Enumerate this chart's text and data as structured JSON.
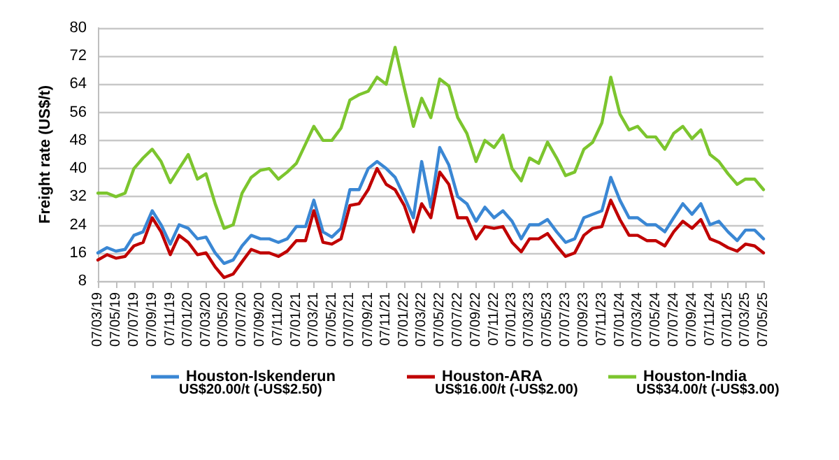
{
  "chart_data": {
    "type": "line",
    "ylabel": "Freight rate (US$/t)",
    "x": [
      "2019-03-07",
      "2019-04-07",
      "2019-05-07",
      "2019-06-07",
      "2019-07-07",
      "2019-08-07",
      "2019-09-07",
      "2019-10-07",
      "2019-11-07",
      "2019-12-07",
      "2020-01-07",
      "2020-02-07",
      "2020-03-07",
      "2020-04-07",
      "2020-05-07",
      "2020-06-07",
      "2020-07-07",
      "2020-08-07",
      "2020-09-07",
      "2020-10-07",
      "2020-11-07",
      "2020-12-07",
      "2021-01-07",
      "2021-02-07",
      "2021-03-07",
      "2021-04-07",
      "2021-05-07",
      "2021-06-07",
      "2021-07-07",
      "2021-08-07",
      "2021-09-07",
      "2021-10-07",
      "2021-11-07",
      "2021-12-07",
      "2022-01-07",
      "2022-02-07",
      "2022-03-07",
      "2022-04-07",
      "2022-05-07",
      "2022-06-07",
      "2022-07-07",
      "2022-08-07",
      "2022-09-07",
      "2022-10-07",
      "2022-11-07",
      "2022-12-07",
      "2023-01-07",
      "2023-02-07",
      "2023-03-07",
      "2023-04-07",
      "2023-05-07",
      "2023-06-07",
      "2023-07-07",
      "2023-08-07",
      "2023-09-07",
      "2023-10-07",
      "2023-11-07",
      "2023-12-07",
      "2024-01-07",
      "2024-02-07",
      "2024-03-07",
      "2024-04-07",
      "2024-05-07",
      "2024-06-07",
      "2024-07-07",
      "2024-08-07",
      "2024-09-07",
      "2024-10-07",
      "2024-11-07",
      "2024-12-07",
      "2025-01-07",
      "2025-02-07",
      "2025-03-07",
      "2025-04-07",
      "2025-05-07"
    ],
    "series": [
      {
        "name": "Houston-Iskenderun",
        "color": "#3a87d4",
        "values": [
          16,
          17.5,
          16.5,
          17,
          21,
          22,
          28,
          24,
          18.5,
          24,
          23,
          20,
          20.5,
          16,
          13,
          14,
          18,
          21,
          20,
          20,
          19,
          20,
          23.5,
          23.5,
          31,
          22,
          20.5,
          23,
          34,
          34,
          40,
          42,
          40,
          37.5,
          32,
          26,
          42,
          29,
          46,
          41,
          32,
          30,
          25,
          29,
          26,
          28,
          25,
          20,
          24,
          24,
          25.5,
          22,
          19,
          20,
          26,
          27,
          28,
          37.5,
          31,
          26,
          26,
          24,
          24,
          22,
          26,
          30,
          27,
          30,
          24,
          25,
          22,
          19.5,
          22.5,
          22.5,
          20
        ]
      },
      {
        "name": "Houston-ARA",
        "color": "#c00000",
        "values": [
          14,
          15.5,
          14.5,
          15,
          18,
          19,
          26,
          22,
          15.5,
          21,
          19,
          15.5,
          16,
          12,
          9,
          10,
          13.5,
          17,
          16,
          16,
          15,
          16.5,
          19.5,
          19.5,
          28,
          19,
          18.5,
          20,
          29.5,
          30,
          34,
          40,
          35.5,
          34,
          29.5,
          22,
          30,
          26,
          39,
          35.5,
          26,
          26,
          20,
          23.5,
          23,
          23.5,
          19,
          16.3,
          20,
          20,
          21.5,
          18,
          15,
          16,
          21,
          23,
          23.5,
          31,
          25.5,
          21,
          21,
          19.5,
          19.5,
          18,
          22,
          25,
          23,
          25.5,
          20,
          19,
          17.5,
          16.5,
          18.5,
          18,
          16
        ]
      },
      {
        "name": "Houston-India",
        "color": "#7cc52e",
        "values": [
          33,
          33,
          32,
          33,
          40,
          43,
          45.5,
          42,
          36,
          40,
          44,
          37,
          38.5,
          30,
          23,
          24,
          33,
          37.5,
          39.5,
          40,
          37,
          39,
          41.5,
          47,
          52,
          48,
          48,
          51.5,
          59.5,
          61,
          62,
          66,
          64,
          74.5,
          63,
          52,
          60,
          54.5,
          65.5,
          63.5,
          54.5,
          50,
          42,
          48,
          46,
          49.5,
          40,
          36.5,
          43,
          41.5,
          47.5,
          43,
          38,
          39,
          45.5,
          47.5,
          53,
          66,
          55.5,
          51,
          52,
          49,
          49,
          45.5,
          50,
          52,
          48.5,
          51,
          44,
          42,
          38.5,
          35.5,
          37,
          37,
          34
        ]
      }
    ],
    "ylim": [
      8,
      80
    ],
    "yticks": [
      8,
      16,
      24,
      32,
      40,
      48,
      56,
      64,
      72,
      80
    ],
    "xlim": [
      "2019-03-07",
      "2025-05-07"
    ],
    "xticks": [
      {
        "value": "2019-03-07",
        "label": "07/03/19"
      },
      {
        "value": "2019-05-07",
        "label": "07/05/19"
      },
      {
        "value": "2019-07-07",
        "label": "07/07/19"
      },
      {
        "value": "2019-09-07",
        "label": "07/09/19"
      },
      {
        "value": "2019-11-07",
        "label": "07/11/19"
      },
      {
        "value": "2020-01-07",
        "label": "07/01/20"
      },
      {
        "value": "2020-03-07",
        "label": "07/03/20"
      },
      {
        "value": "2020-05-07",
        "label": "07/05/20"
      },
      {
        "value": "2020-07-07",
        "label": "07/07/20"
      },
      {
        "value": "2020-09-07",
        "label": "07/09/20"
      },
      {
        "value": "2020-11-07",
        "label": "07/11/20"
      },
      {
        "value": "2021-01-07",
        "label": "07/01/21"
      },
      {
        "value": "2021-03-07",
        "label": "07/03/21"
      },
      {
        "value": "2021-05-07",
        "label": "07/05/21"
      },
      {
        "value": "2021-07-07",
        "label": "07/07/21"
      },
      {
        "value": "2021-09-07",
        "label": "07/09/21"
      },
      {
        "value": "2021-11-07",
        "label": "07/11/21"
      },
      {
        "value": "2022-01-07",
        "label": "07/01/22"
      },
      {
        "value": "2022-03-07",
        "label": "07/03/22"
      },
      {
        "value": "2022-05-07",
        "label": "07/05/22"
      },
      {
        "value": "2022-07-07",
        "label": "07/07/22"
      },
      {
        "value": "2022-09-07",
        "label": "07/09/22"
      },
      {
        "value": "2022-11-07",
        "label": "07/11/22"
      },
      {
        "value": "2023-01-07",
        "label": "07/01/23"
      },
      {
        "value": "2023-03-07",
        "label": "07/03/23"
      },
      {
        "value": "2023-05-07",
        "label": "07/05/23"
      },
      {
        "value": "2023-07-07",
        "label": "07/07/23"
      },
      {
        "value": "2023-09-07",
        "label": "07/09/23"
      },
      {
        "value": "2023-11-07",
        "label": "07/11/23"
      },
      {
        "value": "2024-01-07",
        "label": "07/01/24"
      },
      {
        "value": "2024-03-07",
        "label": "07/03/24"
      },
      {
        "value": "2024-05-07",
        "label": "07/05/24"
      },
      {
        "value": "2024-07-07",
        "label": "07/07/24"
      },
      {
        "value": "2024-09-07",
        "label": "07/09/24"
      },
      {
        "value": "2024-11-07",
        "label": "07/11/24"
      },
      {
        "value": "2025-01-07",
        "label": "07/01/25"
      },
      {
        "value": "2025-03-07",
        "label": "07/03/25"
      },
      {
        "value": "2025-05-07",
        "label": "07/05/25"
      }
    ],
    "annotations": [
      "US$20.00/t (-US$2.50)",
      "US$16.00/t (-US$2.00)",
      "US$34.00/t (-US$3.00)"
    ],
    "grid": "y",
    "legend": "bottom",
    "line_style": "solid",
    "marker": "none"
  }
}
